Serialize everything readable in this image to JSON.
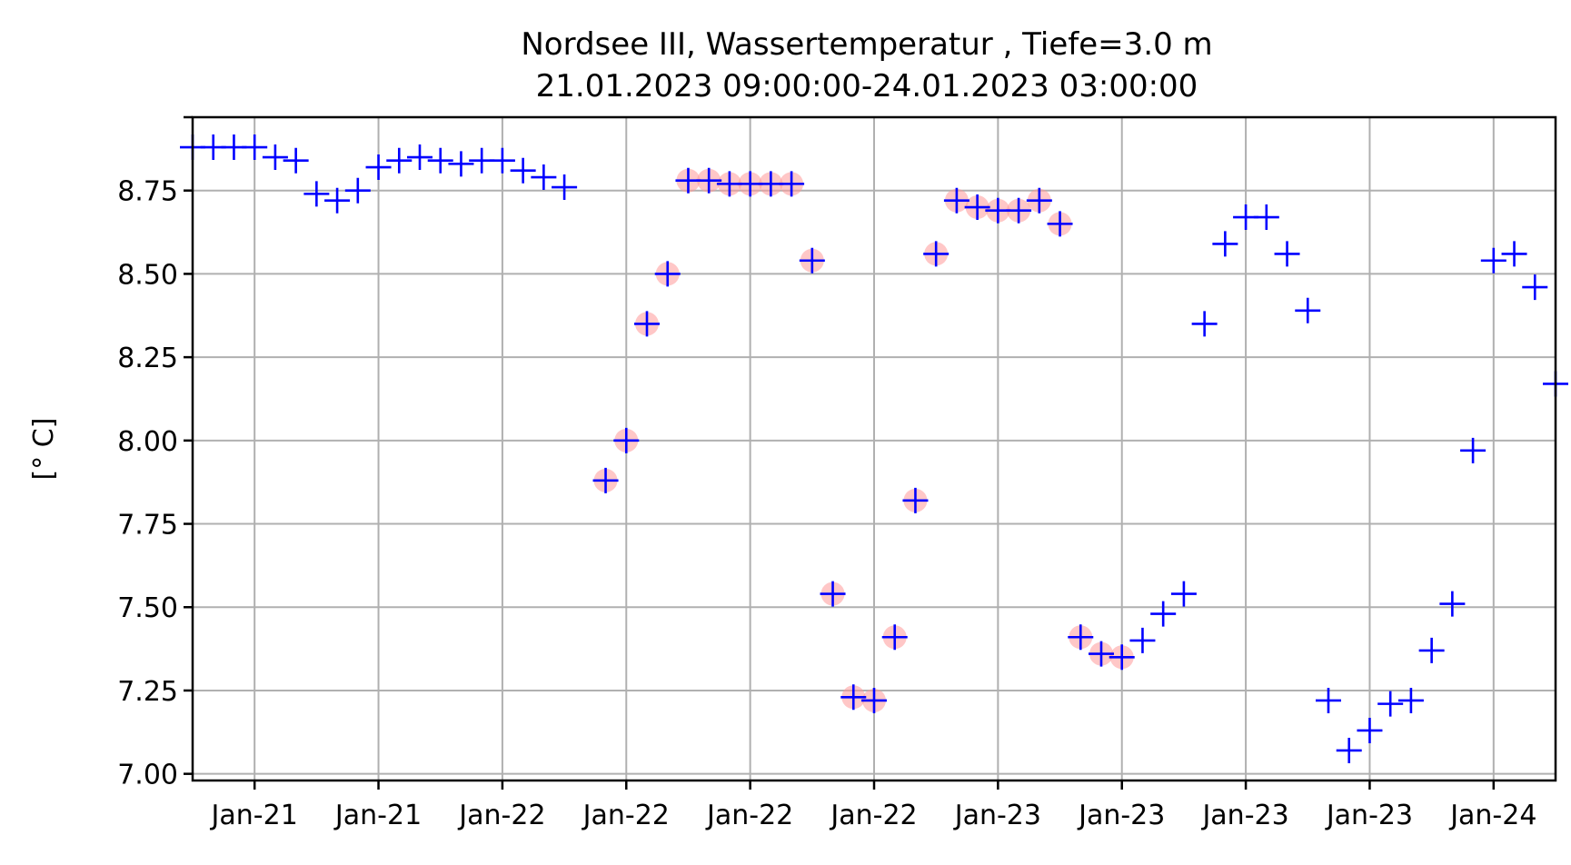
{
  "chart_data": {
    "type": "scatter",
    "title": "Nordsee III, Wassertemperatur , Tiefe=3.0 m",
    "subtitle": "21.01.2023 09:00:00-24.01.2023 03:00:00",
    "xlabel": "",
    "ylabel": "[° C]",
    "ylim": [
      6.98,
      8.97
    ],
    "grid": true,
    "colors": {
      "marker": "#0000ff",
      "flag": "#ff9999"
    },
    "y_ticks": [
      {
        "value": 7.0,
        "label": "7.00"
      },
      {
        "value": 7.25,
        "label": "7.25"
      },
      {
        "value": 7.5,
        "label": "7.50"
      },
      {
        "value": 7.75,
        "label": "7.75"
      },
      {
        "value": 8.0,
        "label": "8.00"
      },
      {
        "value": 8.25,
        "label": "8.25"
      },
      {
        "value": 8.5,
        "label": "8.50"
      },
      {
        "value": 8.75,
        "label": "8.75"
      },
      {
        "value": 8.97,
        "label": ""
      }
    ],
    "x_ticks": [
      {
        "time": "2023-01-21 12:00",
        "label": "Jan-21"
      },
      {
        "time": "2023-01-21 18:00",
        "label": "Jan-21"
      },
      {
        "time": "2023-01-22 00:00",
        "label": "Jan-22"
      },
      {
        "time": "2023-01-22 06:00",
        "label": "Jan-22"
      },
      {
        "time": "2023-01-22 12:00",
        "label": "Jan-22"
      },
      {
        "time": "2023-01-22 18:00",
        "label": "Jan-22"
      },
      {
        "time": "2023-01-23 00:00",
        "label": "Jan-23"
      },
      {
        "time": "2023-01-23 06:00",
        "label": "Jan-23"
      },
      {
        "time": "2023-01-23 12:00",
        "label": "Jan-23"
      },
      {
        "time": "2023-01-23 18:00",
        "label": "Jan-23"
      },
      {
        "time": "2023-01-24 00:00",
        "label": "Jan-24"
      }
    ],
    "xlim": [
      "2023-01-21 09:00",
      "2023-01-24 03:00"
    ],
    "series": [
      {
        "values": [
          {
            "t": "2023-01-21 09:00",
            "y": 8.88,
            "flag": false
          },
          {
            "t": "2023-01-21 10:00",
            "y": 8.88,
            "flag": false
          },
          {
            "t": "2023-01-21 11:00",
            "y": 8.88,
            "flag": false
          },
          {
            "t": "2023-01-21 12:00",
            "y": 8.88,
            "flag": false
          },
          {
            "t": "2023-01-21 13:00",
            "y": 8.85,
            "flag": false
          },
          {
            "t": "2023-01-21 14:00",
            "y": 8.84,
            "flag": false
          },
          {
            "t": "2023-01-21 15:00",
            "y": 8.74,
            "flag": false
          },
          {
            "t": "2023-01-21 16:00",
            "y": 8.72,
            "flag": false
          },
          {
            "t": "2023-01-21 17:00",
            "y": 8.75,
            "flag": false
          },
          {
            "t": "2023-01-21 18:00",
            "y": 8.82,
            "flag": false
          },
          {
            "t": "2023-01-21 19:00",
            "y": 8.84,
            "flag": false
          },
          {
            "t": "2023-01-21 20:00",
            "y": 8.85,
            "flag": false
          },
          {
            "t": "2023-01-21 21:00",
            "y": 8.84,
            "flag": false
          },
          {
            "t": "2023-01-21 22:00",
            "y": 8.83,
            "flag": false
          },
          {
            "t": "2023-01-21 23:00",
            "y": 8.84,
            "flag": false
          },
          {
            "t": "2023-01-22 00:00",
            "y": 8.84,
            "flag": false
          },
          {
            "t": "2023-01-22 01:00",
            "y": 8.81,
            "flag": false
          },
          {
            "t": "2023-01-22 02:00",
            "y": 8.79,
            "flag": false
          },
          {
            "t": "2023-01-22 03:00",
            "y": 8.76,
            "flag": false
          },
          {
            "t": "2023-01-22 05:00",
            "y": 7.88,
            "flag": true
          },
          {
            "t": "2023-01-22 06:00",
            "y": 8.0,
            "flag": true
          },
          {
            "t": "2023-01-22 07:00",
            "y": 8.35,
            "flag": true
          },
          {
            "t": "2023-01-22 08:00",
            "y": 8.5,
            "flag": true
          },
          {
            "t": "2023-01-22 09:00",
            "y": 8.78,
            "flag": true
          },
          {
            "t": "2023-01-22 10:00",
            "y": 8.78,
            "flag": true
          },
          {
            "t": "2023-01-22 11:00",
            "y": 8.77,
            "flag": true
          },
          {
            "t": "2023-01-22 12:00",
            "y": 8.77,
            "flag": true
          },
          {
            "t": "2023-01-22 13:00",
            "y": 8.77,
            "flag": true
          },
          {
            "t": "2023-01-22 14:00",
            "y": 8.77,
            "flag": true
          },
          {
            "t": "2023-01-22 15:00",
            "y": 8.54,
            "flag": true
          },
          {
            "t": "2023-01-22 16:00",
            "y": 7.54,
            "flag": true
          },
          {
            "t": "2023-01-22 17:00",
            "y": 7.23,
            "flag": true
          },
          {
            "t": "2023-01-22 18:00",
            "y": 7.22,
            "flag": true
          },
          {
            "t": "2023-01-22 19:00",
            "y": 7.41,
            "flag": true
          },
          {
            "t": "2023-01-22 20:00",
            "y": 7.82,
            "flag": true
          },
          {
            "t": "2023-01-22 21:00",
            "y": 8.56,
            "flag": true
          },
          {
            "t": "2023-01-22 22:00",
            "y": 8.72,
            "flag": true
          },
          {
            "t": "2023-01-22 23:00",
            "y": 8.7,
            "flag": true
          },
          {
            "t": "2023-01-23 00:00",
            "y": 8.69,
            "flag": true
          },
          {
            "t": "2023-01-23 01:00",
            "y": 8.69,
            "flag": true
          },
          {
            "t": "2023-01-23 02:00",
            "y": 8.72,
            "flag": true
          },
          {
            "t": "2023-01-23 03:00",
            "y": 8.65,
            "flag": true
          },
          {
            "t": "2023-01-23 04:00",
            "y": 7.41,
            "flag": true
          },
          {
            "t": "2023-01-23 05:00",
            "y": 7.36,
            "flag": true
          },
          {
            "t": "2023-01-23 06:00",
            "y": 7.35,
            "flag": true
          },
          {
            "t": "2023-01-23 07:00",
            "y": 7.4,
            "flag": false
          },
          {
            "t": "2023-01-23 08:00",
            "y": 7.48,
            "flag": false
          },
          {
            "t": "2023-01-23 09:00",
            "y": 7.54,
            "flag": false
          },
          {
            "t": "2023-01-23 10:00",
            "y": 8.35,
            "flag": false
          },
          {
            "t": "2023-01-23 11:00",
            "y": 8.59,
            "flag": false
          },
          {
            "t": "2023-01-23 12:00",
            "y": 8.67,
            "flag": false
          },
          {
            "t": "2023-01-23 13:00",
            "y": 8.67,
            "flag": false
          },
          {
            "t": "2023-01-23 14:00",
            "y": 8.56,
            "flag": false
          },
          {
            "t": "2023-01-23 15:00",
            "y": 8.39,
            "flag": false
          },
          {
            "t": "2023-01-23 16:00",
            "y": 7.22,
            "flag": false
          },
          {
            "t": "2023-01-23 17:00",
            "y": 7.07,
            "flag": false
          },
          {
            "t": "2023-01-23 18:00",
            "y": 7.13,
            "flag": false
          },
          {
            "t": "2023-01-23 19:00",
            "y": 7.21,
            "flag": false
          },
          {
            "t": "2023-01-23 20:00",
            "y": 7.22,
            "flag": false
          },
          {
            "t": "2023-01-23 21:00",
            "y": 7.37,
            "flag": false
          },
          {
            "t": "2023-01-23 22:00",
            "y": 7.51,
            "flag": false
          },
          {
            "t": "2023-01-23 23:00",
            "y": 7.97,
            "flag": false
          },
          {
            "t": "2023-01-24 00:00",
            "y": 8.54,
            "flag": false
          },
          {
            "t": "2023-01-24 01:00",
            "y": 8.56,
            "flag": false
          },
          {
            "t": "2023-01-24 02:00",
            "y": 8.46,
            "flag": false
          },
          {
            "t": "2023-01-24 03:00",
            "y": 8.17,
            "flag": false
          }
        ]
      }
    ]
  }
}
